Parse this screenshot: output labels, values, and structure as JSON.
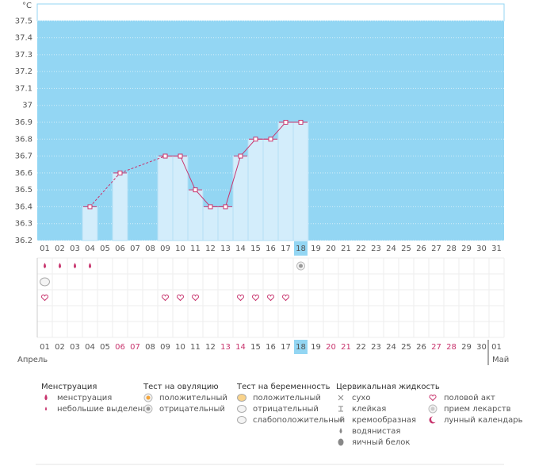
{
  "chart_data": {
    "type": "line",
    "unit": "°C",
    "categories": [
      "01",
      "02",
      "03",
      "04",
      "05",
      "06",
      "07",
      "08",
      "09",
      "10",
      "11",
      "12",
      "13",
      "14",
      "15",
      "16",
      "17",
      "18",
      "19",
      "20",
      "21",
      "22",
      "23",
      "24",
      "25",
      "26",
      "27",
      "28",
      "29",
      "30",
      "31"
    ],
    "values": [
      null,
      null,
      null,
      36.4,
      null,
      36.6,
      null,
      null,
      36.7,
      36.7,
      36.5,
      36.4,
      36.4,
      36.7,
      36.8,
      36.8,
      36.9,
      36.9,
      null,
      null,
      null,
      null,
      null,
      null,
      null,
      null,
      null,
      null,
      null,
      null,
      null
    ],
    "ylim": [
      36.2,
      37.6
    ],
    "yticks": [
      36.2,
      36.3,
      36.4,
      36.5,
      36.6,
      36.7,
      36.8,
      36.9,
      37,
      37.1,
      37.2,
      37.3,
      37.4,
      37.5
    ],
    "color": "#c8356e",
    "bar_color": "#d3edfb",
    "background": "#93d6f3",
    "grid": true,
    "selected_day": "18",
    "menstruation_days": [
      "01",
      "02",
      "03",
      "04"
    ],
    "pregnancy_test_days": [
      "01"
    ],
    "ovulation_test_days": [
      "18"
    ],
    "intercourse_days": [
      "01",
      "09",
      "10",
      "11",
      "14",
      "15",
      "16",
      "17"
    ],
    "calendar_days": [
      "01",
      "02",
      "03",
      "04",
      "05",
      "06",
      "07",
      "08",
      "09",
      "10",
      "11",
      "12",
      "13",
      "14",
      "15",
      "16",
      "17",
      "18",
      "19",
      "20",
      "21",
      "22",
      "23",
      "24",
      "25",
      "26",
      "27",
      "28",
      "29",
      "30",
      "01"
    ],
    "weekend_days": [
      "06",
      "07",
      "13",
      "14",
      "20",
      "21",
      "27",
      "28"
    ],
    "weekend_color": "#c8356e",
    "months": [
      "Апрель",
      "Май"
    ]
  },
  "legend": [
    {
      "title": "Менструация",
      "items": [
        "менструация",
        "небольшие выделения"
      ]
    },
    {
      "title": "Тест на овуляцию",
      "items": [
        "положительный",
        "отрицательный"
      ]
    },
    {
      "title": "Тест на беременность",
      "items": [
        "положительный",
        "отрицательный",
        "слабоположительный"
      ]
    },
    {
      "title": "Цервикальная жидкость",
      "items": [
        "сухо",
        "клейкая",
        "кремообразная",
        "водянистая",
        "яичный белок"
      ]
    },
    {
      "items": [
        "половой акт",
        "прием лекарств",
        "лунный календарь"
      ]
    }
  ]
}
